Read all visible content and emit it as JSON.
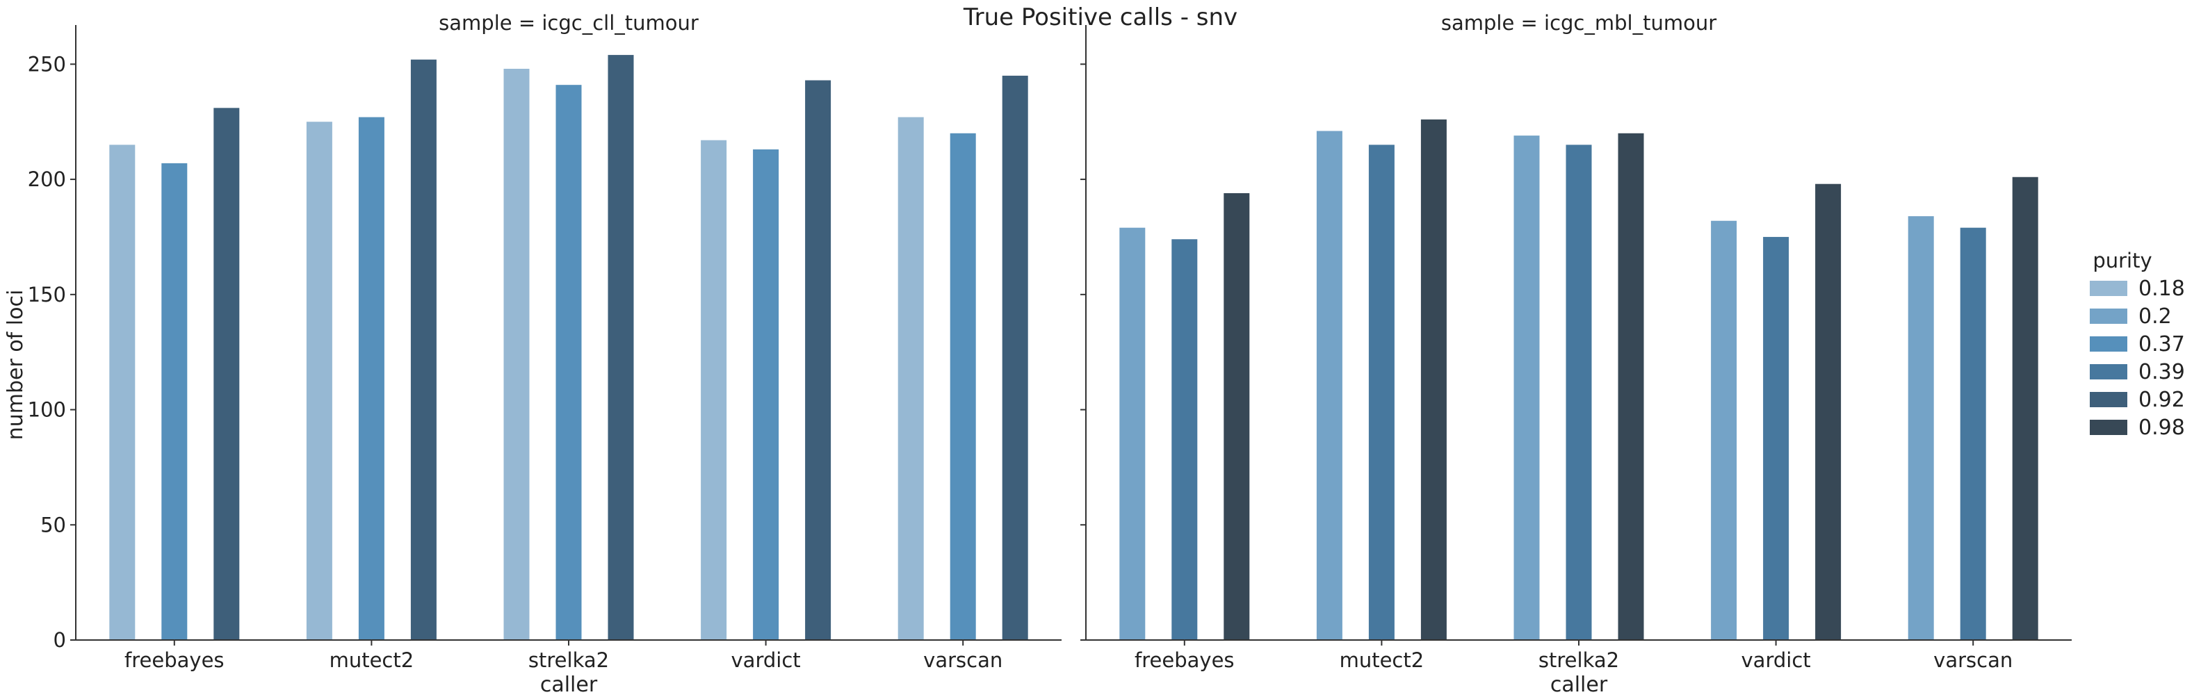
{
  "chart_data": {
    "type": "bar",
    "title": "True Positive calls - snv",
    "xlabel": "caller",
    "ylabel": "number of loci",
    "ylim": [
      0,
      267
    ],
    "yticks": [
      0,
      50,
      100,
      150,
      200,
      250
    ],
    "categories": [
      "freebayes",
      "mutect2",
      "strelka2",
      "vardict",
      "varscan"
    ],
    "legend": {
      "title": "purity",
      "placement": "right",
      "entries": [
        {
          "label": "0.18",
          "color": "#96B8D3"
        },
        {
          "label": "0.2",
          "color": "#74A3C7"
        },
        {
          "label": "0.37",
          "color": "#5690BB"
        },
        {
          "label": "0.39",
          "color": "#47789E"
        },
        {
          "label": "0.92",
          "color": "#3E5F7A"
        },
        {
          "label": "0.98",
          "color": "#374856"
        }
      ]
    },
    "facets": [
      {
        "title": "sample = icgc_cll_tumour",
        "series": [
          {
            "name": "0.18",
            "color": "#96B8D3",
            "values": [
              215,
              225,
              248,
              217,
              227
            ]
          },
          {
            "name": "0.37",
            "color": "#5690BB",
            "values": [
              207,
              227,
              241,
              213,
              220
            ]
          },
          {
            "name": "0.92",
            "color": "#3E5F7A",
            "values": [
              231,
              252,
              254,
              243,
              245
            ]
          }
        ]
      },
      {
        "title": "sample = icgc_mbl_tumour",
        "series": [
          {
            "name": "0.2",
            "color": "#74A3C7",
            "values": [
              179,
              221,
              219,
              182,
              184
            ]
          },
          {
            "name": "0.39",
            "color": "#47789E",
            "values": [
              174,
              215,
              215,
              175,
              179
            ]
          },
          {
            "name": "0.98",
            "color": "#374856",
            "values": [
              194,
              226,
              220,
              198,
              201
            ]
          }
        ]
      }
    ],
    "grid": false
  }
}
